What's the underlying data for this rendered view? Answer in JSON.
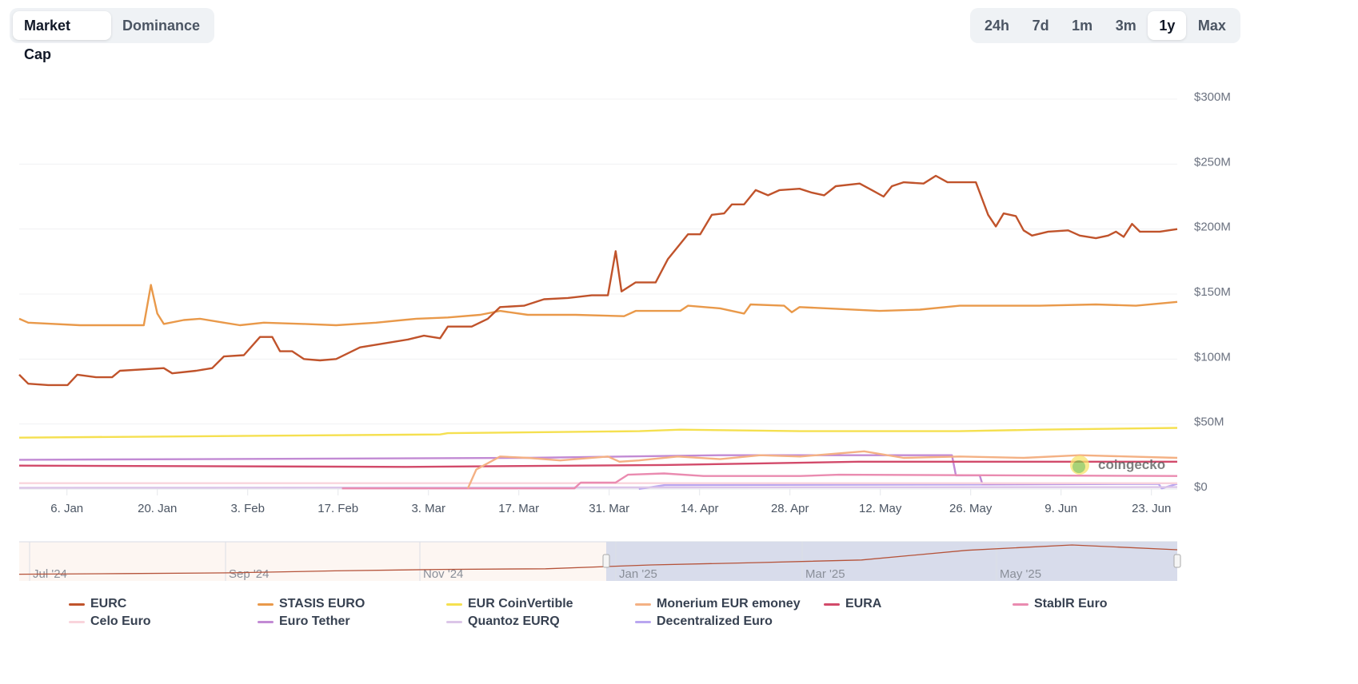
{
  "tabs": {
    "items": [
      {
        "label": "Market Cap",
        "active": true
      },
      {
        "label": "Dominance",
        "active": false
      }
    ]
  },
  "ranges": {
    "items": [
      {
        "label": "24h"
      },
      {
        "label": "7d"
      },
      {
        "label": "1m"
      },
      {
        "label": "3m"
      },
      {
        "label": "1y",
        "active": true
      },
      {
        "label": "Max"
      }
    ]
  },
  "watermark": "coingecko",
  "chart_data": {
    "type": "line",
    "x_unit": "days since 29 Dec 2024",
    "xlim": [
      0,
      179.4
    ],
    "ylim": [
      0,
      300
    ],
    "y_unit": "USD millions",
    "yticks": [
      {
        "v": 0,
        "label": "$0"
      },
      {
        "v": 50,
        "label": "$50M"
      },
      {
        "v": 100,
        "label": "$100M"
      },
      {
        "v": 150,
        "label": "$150M"
      },
      {
        "v": 200,
        "label": "$200M"
      },
      {
        "v": 250,
        "label": "$250M"
      },
      {
        "v": 300,
        "label": "$300M"
      }
    ],
    "xticks": [
      {
        "d": 7.4,
        "label": "6. Jan"
      },
      {
        "d": 21.4,
        "label": "20. Jan"
      },
      {
        "d": 35.4,
        "label": "3. Feb"
      },
      {
        "d": 49.4,
        "label": "17. Feb"
      },
      {
        "d": 63.4,
        "label": "3. Mar"
      },
      {
        "d": 77.4,
        "label": "17. Mar"
      },
      {
        "d": 91.4,
        "label": "31. Mar"
      },
      {
        "d": 105.4,
        "label": "14. Apr"
      },
      {
        "d": 119.4,
        "label": "28. Apr"
      },
      {
        "d": 133.4,
        "label": "12. May"
      },
      {
        "d": 147.4,
        "label": "26. May"
      },
      {
        "d": 161.4,
        "label": "9. Jun"
      },
      {
        "d": 175.4,
        "label": "23. Jun"
      }
    ],
    "grid": true,
    "legend_position": "bottom",
    "series": [
      {
        "name": "EURC",
        "color": "#c0532b",
        "points": [
          [
            0,
            88
          ],
          [
            1.4,
            81
          ],
          [
            4.5,
            80
          ],
          [
            7.5,
            80
          ],
          [
            9,
            88
          ],
          [
            11.9,
            86
          ],
          [
            14.4,
            86
          ],
          [
            15.6,
            91
          ],
          [
            22.4,
            93
          ],
          [
            23.7,
            89
          ],
          [
            27.4,
            91
          ],
          [
            29.9,
            93
          ],
          [
            31.7,
            102
          ],
          [
            34.8,
            103
          ],
          [
            37.3,
            117
          ],
          [
            39.2,
            117
          ],
          [
            40.4,
            106
          ],
          [
            42.3,
            106
          ],
          [
            44.1,
            100
          ],
          [
            46.6,
            99
          ],
          [
            49.1,
            100
          ],
          [
            52.8,
            109
          ],
          [
            56.5,
            112
          ],
          [
            60.2,
            115
          ],
          [
            62.7,
            118
          ],
          [
            65.2,
            116
          ],
          [
            66.4,
            125
          ],
          [
            70.1,
            125
          ],
          [
            72.6,
            131
          ],
          [
            74.5,
            140
          ],
          [
            78.2,
            141
          ],
          [
            81.3,
            146
          ],
          [
            85,
            147
          ],
          [
            88.7,
            149
          ],
          [
            91.2,
            149
          ],
          [
            92.4,
            183
          ],
          [
            93.3,
            152
          ],
          [
            95.5,
            159
          ],
          [
            98.6,
            159
          ],
          [
            100.5,
            177
          ],
          [
            103.6,
            196
          ],
          [
            105.5,
            196
          ],
          [
            107.3,
            211
          ],
          [
            109.2,
            212
          ],
          [
            110.4,
            219
          ],
          [
            112.3,
            219
          ],
          [
            114.1,
            230
          ],
          [
            116,
            226
          ],
          [
            117.8,
            230
          ],
          [
            120.9,
            231
          ],
          [
            122.8,
            228
          ],
          [
            124.7,
            226
          ],
          [
            126.5,
            233
          ],
          [
            130.2,
            235
          ],
          [
            132.1,
            230
          ],
          [
            133.9,
            225
          ],
          [
            135.2,
            233
          ],
          [
            137,
            236
          ],
          [
            140.1,
            235
          ],
          [
            142,
            241
          ],
          [
            143.8,
            236
          ],
          [
            148.2,
            236
          ],
          [
            150.1,
            211
          ],
          [
            151.3,
            202
          ],
          [
            152.5,
            212
          ],
          [
            154.4,
            210
          ],
          [
            155.6,
            199
          ],
          [
            156.9,
            195
          ],
          [
            159.4,
            198
          ],
          [
            162.5,
            199
          ],
          [
            164.3,
            195
          ],
          [
            166.8,
            193
          ],
          [
            168.7,
            195
          ],
          [
            169.9,
            198
          ],
          [
            171.1,
            194
          ],
          [
            172.4,
            204
          ],
          [
            173.6,
            198
          ],
          [
            176.7,
            198
          ],
          [
            179.4,
            200
          ]
        ]
      },
      {
        "name": "STASIS EURO",
        "color": "#e9994a",
        "points": [
          [
            0,
            131
          ],
          [
            1.4,
            128
          ],
          [
            9.4,
            126
          ],
          [
            15.6,
            126
          ],
          [
            19.3,
            126
          ],
          [
            20.4,
            157
          ],
          [
            21.4,
            135
          ],
          [
            22.4,
            127
          ],
          [
            25.5,
            130
          ],
          [
            28,
            131
          ],
          [
            31.7,
            128
          ],
          [
            34.2,
            126
          ],
          [
            37.9,
            128
          ],
          [
            44.1,
            127
          ],
          [
            49.1,
            126
          ],
          [
            55.3,
            128
          ],
          [
            61.5,
            131
          ],
          [
            66.4,
            132
          ],
          [
            71.4,
            134
          ],
          [
            74.5,
            137
          ],
          [
            78.8,
            134
          ],
          [
            86.2,
            134
          ],
          [
            93.7,
            133
          ],
          [
            95.5,
            137
          ],
          [
            102.4,
            137
          ],
          [
            103.6,
            141
          ],
          [
            108.6,
            139
          ],
          [
            112.3,
            135
          ],
          [
            113.3,
            142
          ],
          [
            118.5,
            141
          ],
          [
            119.7,
            136
          ],
          [
            120.9,
            140
          ],
          [
            133.3,
            137
          ],
          [
            139.5,
            138
          ],
          [
            145.7,
            141
          ],
          [
            158.1,
            141
          ],
          [
            166.8,
            142
          ],
          [
            173,
            141
          ],
          [
            179.4,
            144
          ]
        ]
      },
      {
        "name": "EUR CoinVertible",
        "color": "#f5e050",
        "points": [
          [
            0,
            39.5
          ],
          [
            37.9,
            41
          ],
          [
            65.2,
            42
          ],
          [
            66.4,
            43
          ],
          [
            96.1,
            44.5
          ],
          [
            102.4,
            45.7
          ],
          [
            120.9,
            44.5
          ],
          [
            145.7,
            44.5
          ],
          [
            158.1,
            45.7
          ],
          [
            179.4,
            47
          ]
        ]
      },
      {
        "name": "Monerium EUR emoney",
        "color": "#f4b184",
        "points": [
          [
            69.5,
            0.5
          ],
          [
            70.8,
            15
          ],
          [
            74.5,
            25
          ],
          [
            78.8,
            24
          ],
          [
            83.8,
            22
          ],
          [
            91.2,
            25
          ],
          [
            93,
            21
          ],
          [
            96,
            22
          ],
          [
            102,
            25
          ],
          [
            108.6,
            23
          ],
          [
            114.8,
            26
          ],
          [
            121,
            25
          ],
          [
            130.9,
            29
          ],
          [
            137,
            24
          ],
          [
            145.7,
            25
          ],
          [
            155.6,
            24
          ],
          [
            164.3,
            26
          ],
          [
            179.4,
            24
          ]
        ]
      },
      {
        "name": "EURA",
        "color": "#d24a6a",
        "points": [
          [
            0,
            18
          ],
          [
            60,
            17
          ],
          [
            100,
            18.5
          ],
          [
            112,
            19.5
          ],
          [
            130,
            21
          ],
          [
            179.4,
            21
          ]
        ]
      },
      {
        "name": "StablR Euro",
        "color": "#ea8bb0",
        "points": [
          [
            50,
            0.5
          ],
          [
            86,
            0.5
          ],
          [
            87,
            5
          ],
          [
            92.4,
            5
          ],
          [
            94.3,
            11
          ],
          [
            99.9,
            12
          ],
          [
            106,
            10
          ],
          [
            121,
            10
          ],
          [
            127,
            11
          ],
          [
            179.4,
            10
          ]
        ]
      },
      {
        "name": "Celo Euro",
        "color": "#f9d4dc",
        "points": [
          [
            0,
            4.5
          ],
          [
            179.4,
            4.5
          ]
        ]
      },
      {
        "name": "Euro Tether",
        "color": "#c28ad4",
        "points": [
          [
            0,
            22.5
          ],
          [
            78.8,
            24
          ],
          [
            108.6,
            26
          ],
          [
            144.5,
            26
          ],
          [
            145.1,
            10.5
          ],
          [
            148.8,
            10.5
          ],
          [
            149.2,
            4
          ],
          [
            179.4,
            4.5
          ]
        ]
      },
      {
        "name": "Quantoz EURQ",
        "color": "#dcc6e8",
        "points": [
          [
            0,
            1
          ],
          [
            179.4,
            1.5
          ]
        ]
      },
      {
        "name": "Decentralized Euro",
        "color": "#b9a6f0",
        "points": [
          [
            96,
            0
          ],
          [
            100,
            3
          ],
          [
            150,
            3.5
          ],
          [
            176.5,
            4
          ],
          [
            177,
            0.5
          ],
          [
            179.4,
            4
          ]
        ]
      }
    ],
    "navigator": {
      "series": "EURC",
      "ticks": [
        "Jul '24",
        "Sep '24",
        "Nov '24",
        "Jan '25",
        "Mar '25",
        "May '25"
      ],
      "values_monthly": [
        {
          "m": "Jul '24",
          "v": 20
        },
        {
          "m": "Aug '24",
          "v": 25
        },
        {
          "m": "Sep '24",
          "v": 30
        },
        {
          "m": "Oct '24",
          "v": 45
        },
        {
          "m": "Nov '24",
          "v": 55
        },
        {
          "m": "Dec '24",
          "v": 60
        },
        {
          "m": "Jan '25",
          "v": 88
        },
        {
          "m": "Feb '25",
          "v": 105
        },
        {
          "m": "Mar '25",
          "v": 125
        },
        {
          "m": "Apr '25",
          "v": 196
        },
        {
          "m": "May '25",
          "v": 235
        },
        {
          "m": "Jun '25",
          "v": 200
        }
      ],
      "selected_range": [
        "29 Dec 2024",
        "27 Jun 2025"
      ]
    }
  }
}
